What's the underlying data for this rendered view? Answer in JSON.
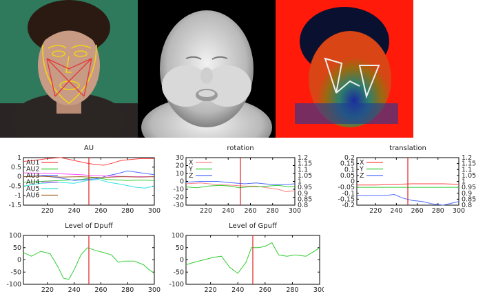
{
  "plots": [
    {
      "id": "au",
      "title": "AU",
      "ylim": [
        -1.5,
        1
      ],
      "yticks": [
        "1",
        "0.5",
        "0",
        "-0.5",
        "-1",
        "-1.5"
      ],
      "xlim": [
        202,
        300
      ],
      "xticks": [
        "220",
        "240",
        "260",
        "280",
        "300"
      ],
      "y2ticks": [],
      "marker": 251,
      "legend": [
        {
          "name": "AU1",
          "color": "#ff4040"
        },
        {
          "name": "AU2",
          "color": "#33cc33"
        },
        {
          "name": "AU3",
          "color": "#4d6bff"
        },
        {
          "name": "AU4",
          "color": "#ff4dff"
        },
        {
          "name": "AU5",
          "color": "#33e0e0"
        },
        {
          "name": "AU6",
          "color": "#a06020"
        }
      ],
      "series": [
        {
          "name": "AU1",
          "color": "#ff4040",
          "x": [
            202,
            210,
            220,
            230,
            240,
            250,
            255,
            262,
            268,
            275,
            282,
            290,
            300
          ],
          "y": [
            0.8,
            0.85,
            0.95,
            1.0,
            0.85,
            0.7,
            0.65,
            0.6,
            0.7,
            0.85,
            0.9,
            0.95,
            0.95
          ]
        },
        {
          "name": "AU2",
          "color": "#33cc33",
          "x": [
            202,
            215,
            230,
            245,
            255,
            265,
            280,
            290,
            300
          ],
          "y": [
            -0.3,
            -0.25,
            -0.2,
            -0.15,
            -0.05,
            -0.15,
            -0.2,
            -0.18,
            -0.2
          ]
        },
        {
          "name": "AU3",
          "color": "#4d6bff",
          "x": [
            202,
            215,
            228,
            240,
            250,
            258,
            265,
            272,
            280,
            290,
            300
          ],
          "y": [
            0.0,
            0.05,
            -0.05,
            -0.2,
            -0.15,
            -0.1,
            0.05,
            0.15,
            0.3,
            0.2,
            0.1
          ]
        },
        {
          "name": "AU4",
          "color": "#ff4dff",
          "x": [
            202,
            215,
            230,
            245,
            255,
            270,
            285,
            300
          ],
          "y": [
            0.2,
            0.18,
            0.15,
            0.1,
            0.05,
            0.02,
            0.0,
            0.0
          ]
        },
        {
          "name": "AU5",
          "color": "#33e0e0",
          "x": [
            202,
            215,
            228,
            240,
            250,
            258,
            266,
            275,
            285,
            293,
            300
          ],
          "y": [
            -0.5,
            -0.35,
            -0.3,
            -0.35,
            -0.2,
            -0.15,
            -0.3,
            -0.4,
            -0.55,
            -0.6,
            -0.5
          ]
        },
        {
          "name": "AU6",
          "color": "#a06020",
          "x": [
            202,
            215,
            230,
            245,
            260,
            275,
            290,
            300
          ],
          "y": [
            0.0,
            0.02,
            -0.02,
            0.0,
            -0.05,
            0.0,
            -0.02,
            0.0
          ]
        }
      ]
    },
    {
      "id": "rotation",
      "title": "rotation",
      "ylim": [
        -30,
        30
      ],
      "yticks": [
        "30",
        "20",
        "10",
        "0",
        "-10",
        "-20",
        "-30"
      ],
      "xlim": [
        202,
        300
      ],
      "xticks": [
        "220",
        "240",
        "260",
        "280",
        "300"
      ],
      "y2ticks": [
        "1.2",
        "1.15",
        "1.1",
        "1.05",
        "1",
        "0.95",
        "0.9",
        "0.85",
        "0.8"
      ],
      "marker": 251,
      "legend": [
        {
          "name": "X",
          "color": "#ff8080"
        },
        {
          "name": "Y",
          "color": "#33cc33"
        },
        {
          "name": "Z",
          "color": "#4d6bff"
        }
      ],
      "series": [
        {
          "name": "X",
          "color": "#ff8080",
          "x": [
            202,
            215,
            230,
            245,
            255,
            265,
            275,
            285,
            292,
            300
          ],
          "y": [
            -3,
            -2,
            -4,
            -5,
            -6,
            -6,
            -8,
            -10,
            -13,
            -12
          ]
        },
        {
          "name": "Y",
          "color": "#33cc33",
          "x": [
            202,
            212,
            222,
            232,
            242,
            250,
            258,
            266,
            275,
            285,
            295,
            300
          ],
          "y": [
            -7,
            -8,
            -6,
            -5,
            -6,
            -8,
            -7,
            -7,
            -6,
            -5,
            -7,
            -6
          ]
        },
        {
          "name": "Z",
          "color": "#4d6bff",
          "x": [
            202,
            215,
            230,
            245,
            255,
            265,
            280,
            292,
            300
          ],
          "y": [
            -1,
            0,
            0,
            -2,
            -3,
            -2,
            -4,
            -4,
            -3
          ]
        }
      ]
    },
    {
      "id": "translation",
      "title": "translation",
      "ylim": [
        -0.2,
        0.2
      ],
      "yticks": [
        "0.2",
        "0.15",
        "0.1",
        "0.05",
        "0",
        "-0.05",
        "-0.1",
        "-0.15",
        "-0.2"
      ],
      "xlim": [
        202,
        300
      ],
      "xticks": [
        "220",
        "240",
        "260",
        "280",
        "300"
      ],
      "y2ticks": [
        "1.2",
        "1.15",
        "1.1",
        "1.05",
        "1",
        "0.95",
        "0.9",
        "0.85",
        "0.8"
      ],
      "marker": 251,
      "legend": [
        {
          "name": "X",
          "color": "#ff4040"
        },
        {
          "name": "Y",
          "color": "#33cc33"
        },
        {
          "name": "Z",
          "color": "#4d6bff"
        }
      ],
      "series": [
        {
          "name": "X",
          "color": "#ff4040",
          "x": [
            202,
            220,
            240,
            255,
            270,
            285,
            300
          ],
          "y": [
            -0.03,
            -0.03,
            -0.025,
            -0.02,
            -0.02,
            -0.02,
            -0.025
          ]
        },
        {
          "name": "Y",
          "color": "#33cc33",
          "x": [
            202,
            220,
            240,
            260,
            280,
            300
          ],
          "y": [
            -0.05,
            -0.05,
            -0.05,
            -0.05,
            -0.05,
            -0.05
          ]
        },
        {
          "name": "Z",
          "color": "#4d6bff",
          "x": [
            202,
            215,
            228,
            238,
            246,
            255,
            265,
            275,
            285,
            295,
            300
          ],
          "y": [
            -0.12,
            -0.12,
            -0.12,
            -0.11,
            -0.14,
            -0.16,
            -0.17,
            -0.19,
            -0.2,
            -0.18,
            -0.17
          ]
        }
      ]
    },
    {
      "id": "dpuff",
      "title": "Level of Dpuff",
      "ylim": [
        -100,
        100
      ],
      "yticks": [
        "100",
        "50",
        "0",
        "-50",
        "-100"
      ],
      "xlim": [
        202,
        300
      ],
      "xticks": [
        "220",
        "240",
        "260",
        "280",
        "300"
      ],
      "y2ticks": [],
      "marker": 251,
      "legend": [],
      "series": [
        {
          "name": "",
          "color": "#33cc33",
          "x": [
            202,
            208,
            215,
            222,
            228,
            232,
            236,
            240,
            245,
            250,
            255,
            262,
            268,
            273,
            278,
            285,
            292,
            296,
            300
          ],
          "y": [
            30,
            15,
            35,
            25,
            -30,
            -75,
            -80,
            -40,
            20,
            50,
            40,
            30,
            20,
            -10,
            -5,
            -5,
            -20,
            -40,
            -55
          ]
        }
      ]
    },
    {
      "id": "gpuff",
      "title": "Level of Gpuff",
      "ylim": [
        -100,
        100
      ],
      "yticks": [
        "100",
        "50",
        "0",
        "-50",
        "-100"
      ],
      "xlim": [
        202,
        300
      ],
      "xticks": [
        "220",
        "240",
        "260",
        "280",
        "300"
      ],
      "y2ticks": [],
      "marker": 251,
      "legend": [],
      "series": [
        {
          "name": "",
          "color": "#33cc33",
          "x": [
            202,
            208,
            215,
            222,
            228,
            234,
            240,
            246,
            250,
            255,
            260,
            265,
            270,
            276,
            282,
            290,
            296,
            300
          ],
          "y": [
            -20,
            -10,
            0,
            10,
            15,
            -30,
            -55,
            -10,
            50,
            50,
            55,
            70,
            20,
            15,
            20,
            15,
            35,
            50
          ]
        }
      ]
    }
  ],
  "chart_data": [
    {
      "type": "line",
      "title": "AU",
      "xlabel": "",
      "ylabel": "",
      "ylim": [
        -1.5,
        1
      ],
      "xlim": [
        202,
        300
      ],
      "series": [
        {
          "name": "AU1"
        },
        {
          "name": "AU2"
        },
        {
          "name": "AU3"
        },
        {
          "name": "AU4"
        },
        {
          "name": "AU5"
        },
        {
          "name": "AU6"
        }
      ]
    },
    {
      "type": "line",
      "title": "rotation",
      "ylim": [
        -30,
        30
      ],
      "xlim": [
        202,
        300
      ],
      "series": [
        {
          "name": "X"
        },
        {
          "name": "Y"
        },
        {
          "name": "Z"
        }
      ]
    },
    {
      "type": "line",
      "title": "translation",
      "ylim": [
        -0.2,
        0.2
      ],
      "xlim": [
        202,
        300
      ],
      "series": [
        {
          "name": "X"
        },
        {
          "name": "Y"
        },
        {
          "name": "Z"
        }
      ]
    },
    {
      "type": "line",
      "title": "Level of Dpuff",
      "ylim": [
        -100,
        100
      ],
      "xlim": [
        202,
        300
      ]
    },
    {
      "type": "line",
      "title": "Level of Gpuff",
      "ylim": [
        -100,
        100
      ],
      "xlim": [
        202,
        300
      ]
    }
  ]
}
